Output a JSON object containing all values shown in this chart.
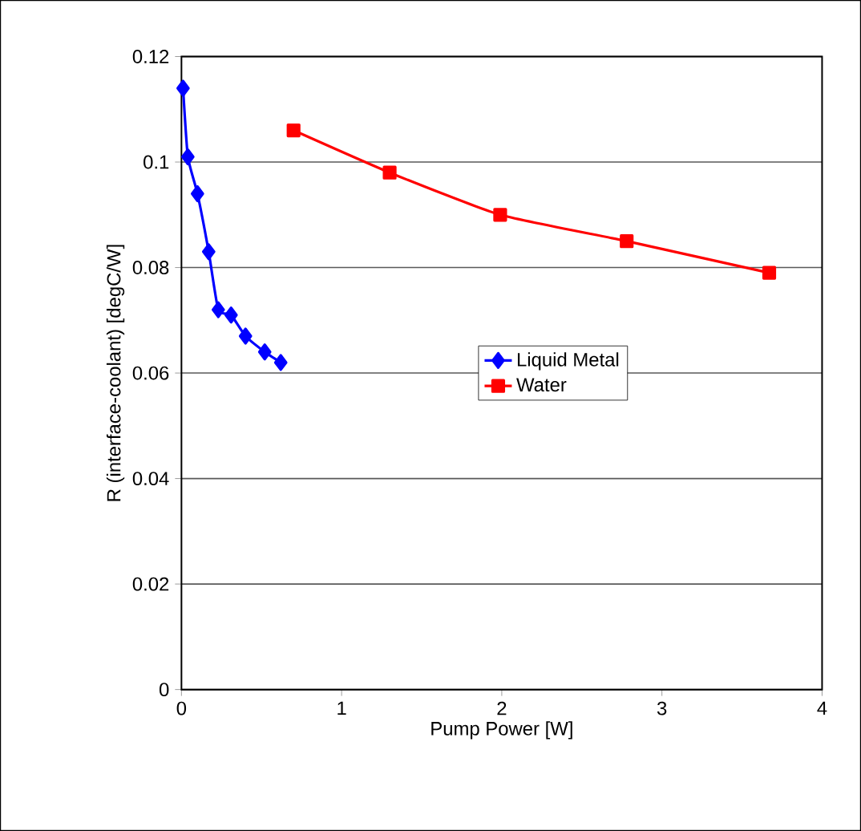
{
  "chart_data": {
    "type": "line",
    "xlabel": "Pump Power [W]",
    "ylabel": "R (interface-coolant) [degC/W]",
    "xlim": [
      0,
      4
    ],
    "ylim": [
      0,
      0.12
    ],
    "xticks": [
      0,
      1,
      2,
      3,
      4
    ],
    "yticks": [
      0,
      0.02,
      0.04,
      0.06,
      0.08,
      0.1,
      0.12
    ],
    "grid": "y",
    "legend": "right",
    "series": [
      {
        "name": "Liquid Metal",
        "color": "#0000ff",
        "marker": "diamond",
        "x": [
          0.01,
          0.04,
          0.1,
          0.17,
          0.23,
          0.31,
          0.4,
          0.52,
          0.62
        ],
        "values": [
          0.114,
          0.101,
          0.094,
          0.083,
          0.072,
          0.071,
          0.067,
          0.064,
          0.062
        ]
      },
      {
        "name": "Water",
        "color": "#ff0000",
        "marker": "square",
        "x": [
          0.7,
          1.3,
          1.99,
          2.78,
          3.67
        ],
        "values": [
          0.106,
          0.098,
          0.09,
          0.085,
          0.079
        ]
      }
    ]
  }
}
